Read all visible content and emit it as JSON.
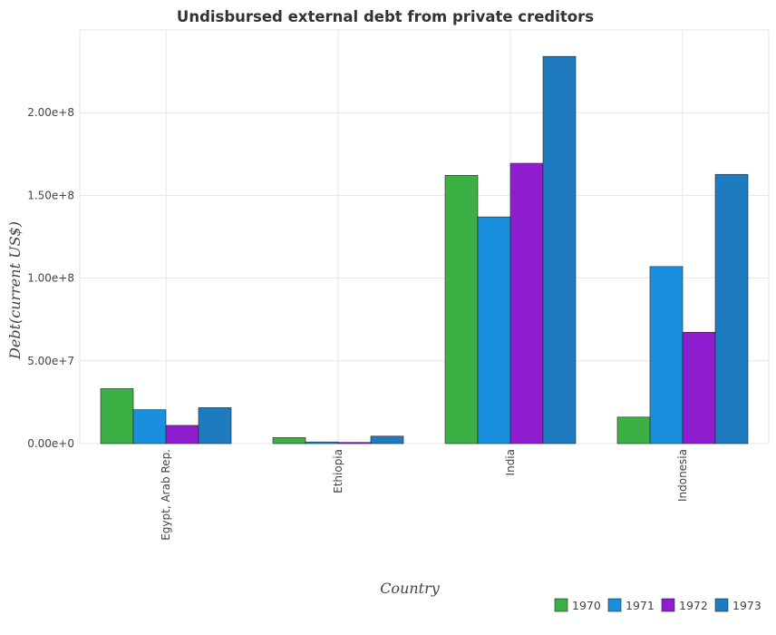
{
  "chart_data": {
    "type": "bar",
    "title": "Undisbursed external debt from private creditors",
    "xlabel": "Country",
    "ylabel": "Debt(current US$)",
    "categories": [
      "Egypt, Arab Rep.",
      "Ethiopia",
      "India",
      "Indonesia"
    ],
    "series": [
      {
        "name": "1970",
        "color": "#3cb044",
        "values": [
          33200000,
          3600000,
          162100000,
          16000000
        ]
      },
      {
        "name": "1971",
        "color": "#1a8fe0",
        "values": [
          20500000,
          1000000,
          137000000,
          107000000
        ]
      },
      {
        "name": "1972",
        "color": "#8e1ed0",
        "values": [
          11000000,
          700000,
          169400000,
          67300000
        ]
      },
      {
        "name": "1973",
        "color": "#1f7bbf",
        "values": [
          21700000,
          4500000,
          234000000,
          162700000
        ]
      }
    ],
    "ylim": [
      0,
      250000000
    ],
    "yticks": [
      0,
      50000000,
      100000000,
      150000000,
      200000000
    ],
    "ytick_labels": [
      "0.00e+0",
      "5.00e+7",
      "1.00e+8",
      "1.50e+8",
      "2.00e+8"
    ],
    "grid": true,
    "legend_position": "bottom-right"
  }
}
